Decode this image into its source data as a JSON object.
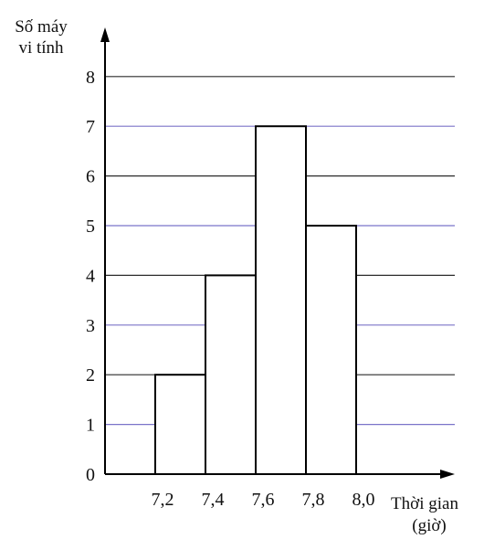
{
  "chart_data": {
    "type": "histogram",
    "title": "",
    "ylabel_lines": [
      "Số máy",
      "vi tính"
    ],
    "xlabel_lines": [
      "Thời gian",
      "(giờ)"
    ],
    "bins": [
      {
        "from": 7.2,
        "to": 7.4,
        "value": 2
      },
      {
        "from": 7.4,
        "to": 7.6,
        "value": 4
      },
      {
        "from": 7.6,
        "to": 7.8,
        "value": 7
      },
      {
        "from": 7.8,
        "to": 8.0,
        "value": 5
      }
    ],
    "x_tick_labels": [
      "7,2",
      "7,4",
      "7,6",
      "7,8",
      "8,0"
    ],
    "y_tick_labels": [
      "0",
      "1",
      "2",
      "3",
      "4",
      "5",
      "6",
      "7",
      "8"
    ],
    "ylim": [
      0,
      8
    ],
    "grid": true,
    "colors": {
      "gridline_even": "#2b2b2b",
      "gridline_odd": "#7b74c9",
      "bar_fill": "#ffffff",
      "bar_stroke": "#000000",
      "axis": "#000000"
    }
  }
}
